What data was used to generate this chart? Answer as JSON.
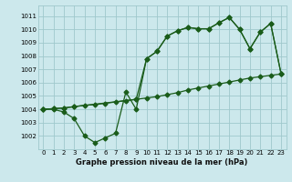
{
  "title": "Graphe pression niveau de la mer (hPa)",
  "bg_color": "#cce8ec",
  "grid_color": "#9fc8cc",
  "line_color": "#1a5c1a",
  "xlim": [
    -0.5,
    23.5
  ],
  "ylim": [
    1001.0,
    1011.8
  ],
  "yticks": [
    1002,
    1003,
    1004,
    1005,
    1006,
    1007,
    1008,
    1009,
    1010,
    1011
  ],
  "xticks": [
    0,
    1,
    2,
    3,
    4,
    5,
    6,
    7,
    8,
    9,
    10,
    11,
    12,
    13,
    14,
    15,
    16,
    17,
    18,
    19,
    20,
    21,
    22,
    23
  ],
  "line1_x": [
    0,
    1,
    2,
    3,
    4,
    5,
    6,
    7,
    8,
    9,
    10,
    11,
    12,
    13,
    14,
    15,
    16,
    17,
    18,
    19,
    20,
    21,
    22,
    23
  ],
  "line1_y": [
    1004.0,
    1004.05,
    1004.1,
    1004.2,
    1004.3,
    1004.35,
    1004.45,
    1004.55,
    1004.65,
    1004.75,
    1004.85,
    1004.95,
    1005.1,
    1005.25,
    1005.45,
    1005.6,
    1005.75,
    1005.9,
    1006.05,
    1006.2,
    1006.35,
    1006.45,
    1006.55,
    1006.65
  ],
  "line2_x": [
    0,
    1,
    2,
    3,
    4,
    5,
    6,
    7,
    8,
    9,
    10,
    11,
    12,
    13,
    14,
    15,
    16,
    17,
    18,
    19,
    20,
    21,
    22,
    23
  ],
  "line2_y": [
    1004.0,
    1004.0,
    1003.8,
    1003.3,
    1002.0,
    1001.5,
    1001.85,
    1002.2,
    1005.3,
    1004.0,
    1007.8,
    1008.35,
    1009.5,
    1009.9,
    1010.15,
    1010.05,
    1010.05,
    1010.5,
    1010.9,
    1010.0,
    1008.55,
    1009.8,
    1010.45,
    1006.7
  ],
  "line3_x": [
    0,
    1,
    2,
    3,
    9,
    10,
    11,
    12,
    13,
    14,
    15,
    16,
    17,
    18,
    19,
    20,
    21,
    22,
    23
  ],
  "line3_y": [
    1004.0,
    1004.05,
    1004.1,
    1004.2,
    1004.75,
    1007.8,
    1008.35,
    1009.5,
    1009.9,
    1010.15,
    1010.05,
    1010.05,
    1010.5,
    1010.9,
    1010.0,
    1008.55,
    1009.8,
    1010.45,
    1006.7
  ]
}
